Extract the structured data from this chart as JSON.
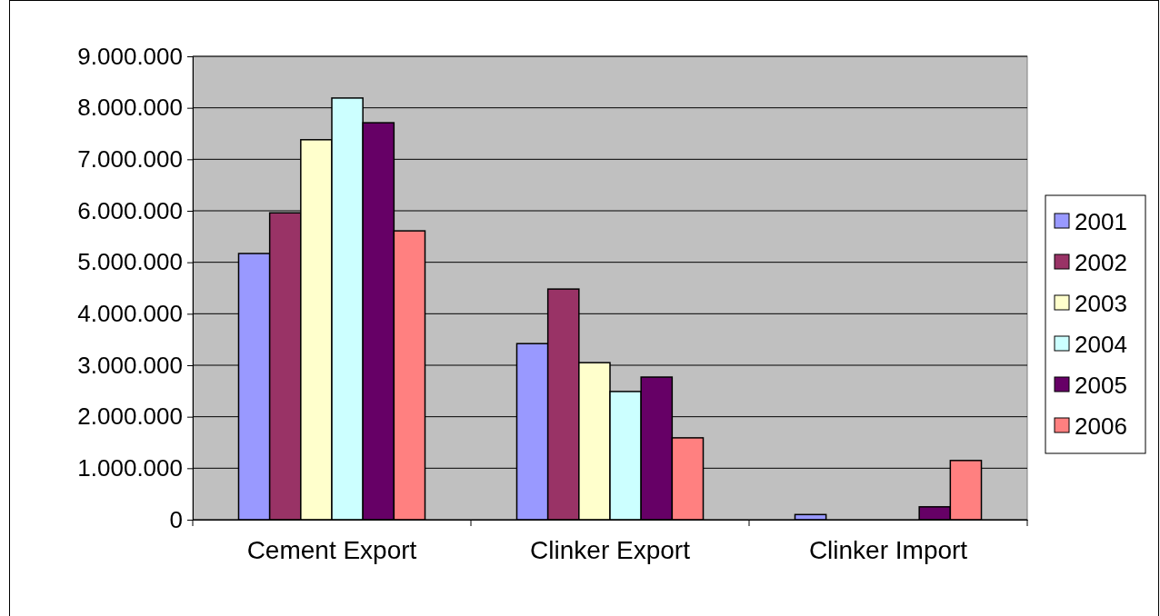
{
  "chart_data": {
    "type": "bar",
    "categories": [
      "Cement Export",
      "Clinker Export",
      "Clinker Import"
    ],
    "series": [
      {
        "name": "2001",
        "color": "#9999ff",
        "values": [
          5170000,
          3420000,
          100000
        ]
      },
      {
        "name": "2002",
        "color": "#993366",
        "values": [
          5960000,
          4480000,
          0
        ]
      },
      {
        "name": "2003",
        "color": "#ffffcc",
        "values": [
          7380000,
          3050000,
          0
        ]
      },
      {
        "name": "2004",
        "color": "#ccffff",
        "values": [
          8190000,
          2490000,
          0
        ]
      },
      {
        "name": "2005",
        "color": "#660066",
        "values": [
          7710000,
          2770000,
          250000
        ]
      },
      {
        "name": "2006",
        "color": "#ff8080",
        "values": [
          5610000,
          1590000,
          1150000
        ]
      }
    ],
    "ylim": [
      0,
      9000000
    ],
    "yticks": [
      0,
      {
        "value": 1000000,
        "label": "1.000.000"
      },
      {
        "value": 2000000,
        "label": "2.000.000"
      },
      {
        "value": 3000000,
        "label": "3.000.000"
      },
      {
        "value": 4000000,
        "label": "4.000.000"
      },
      {
        "value": 5000000,
        "label": "5.000.000"
      },
      {
        "value": 6000000,
        "label": "6.000.000"
      },
      {
        "value": 7000000,
        "label": "7.000.000"
      },
      {
        "value": 8000000,
        "label": "8.000.000"
      },
      {
        "value": 9000000,
        "label": "9.000.000"
      }
    ],
    "grid": "y",
    "legend": "right"
  }
}
